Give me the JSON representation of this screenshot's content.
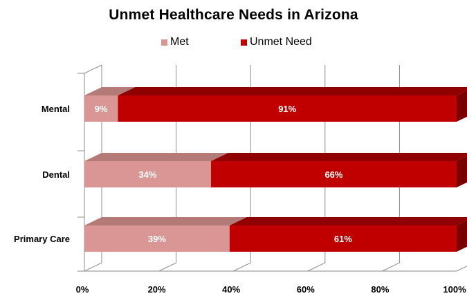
{
  "chart_data": {
    "type": "bar",
    "orientation": "horizontal",
    "stacked": true,
    "percent": true,
    "title": "Unmet Healthcare Needs in Arizona",
    "categories": [
      "Mental",
      "Dental",
      "Primary Care"
    ],
    "series": [
      {
        "name": "Met",
        "values": [
          9,
          34,
          39
        ],
        "labels": [
          "9%",
          "34%",
          "39%"
        ],
        "color": "#d99694"
      },
      {
        "name": "Unmet Need",
        "values": [
          91,
          66,
          61
        ],
        "labels": [
          "91%",
          "66%",
          "61%"
        ],
        "color": "#c00000"
      }
    ],
    "xlim": [
      0,
      100
    ],
    "xticks": [
      "0%",
      "20%",
      "40%",
      "60%",
      "80%",
      "100%"
    ],
    "grid": true,
    "legend_position": "top",
    "style": "3d"
  }
}
